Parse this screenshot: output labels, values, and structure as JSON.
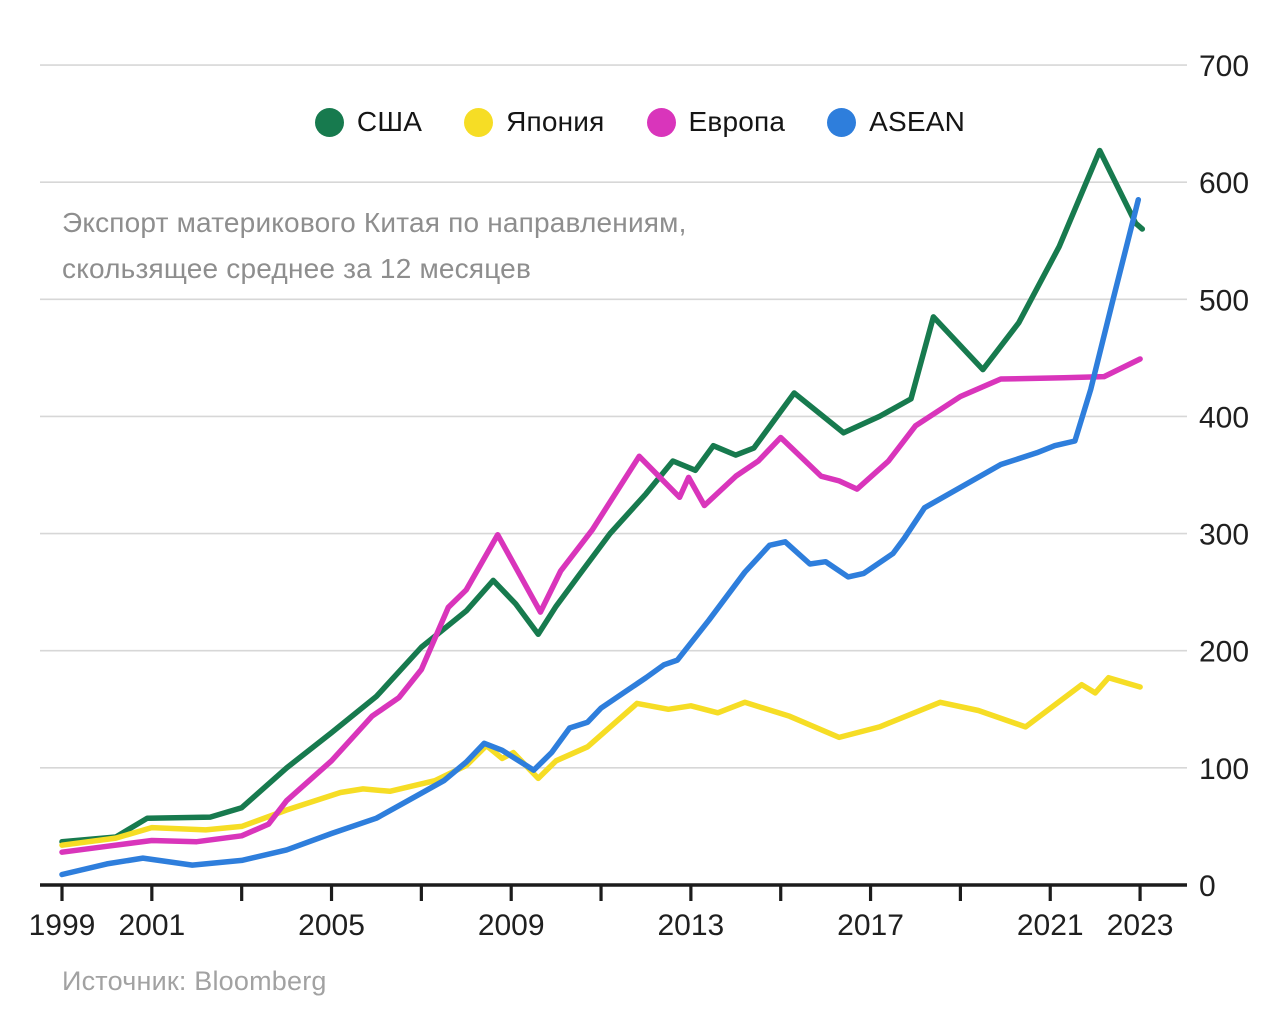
{
  "subtitle": {
    "line1": "Экспорт материкового Китая по направлениям,",
    "line2": "скользящее среднее за 12 месяцев"
  },
  "source": "Источник: Bloomberg",
  "colors": {
    "background": "#ffffff",
    "grid": "#d7d7d7",
    "axis": "#1c1c1c",
    "tick_label": "#1f1f1f",
    "subtitle_gray": "#8e8e8e",
    "source_gray": "#a2a2a2"
  },
  "chart_data": {
    "type": "line",
    "title": "Экспорт материкового Китая по направлениям, скользящее среднее за 12 месяцев",
    "source": "Источник: Bloomberg",
    "legend_position": "top-center",
    "grid": "horizontal",
    "x_axis": {
      "range_years": [
        1999,
        2024.1
      ],
      "tick_years": [
        1999,
        2001,
        2003,
        2005,
        2007,
        2009,
        2011,
        2013,
        2015,
        2017,
        2019,
        2021,
        2023
      ],
      "labeled_tick_years": [
        1999,
        2001,
        2005,
        2009,
        2013,
        2017,
        2021,
        2023
      ]
    },
    "y_axis": {
      "side": "right",
      "range": [
        0,
        700
      ],
      "tick_step": 100,
      "ticks": [
        0,
        100,
        200,
        300,
        400,
        500,
        600,
        700
      ]
    },
    "series": [
      {
        "key": "usa",
        "name": "США",
        "color": "#177A4E",
        "points": [
          [
            1999,
            37
          ],
          [
            2000.2,
            41
          ],
          [
            2000.9,
            57
          ],
          [
            2002.3,
            58
          ],
          [
            2003,
            66
          ],
          [
            2004,
            100
          ],
          [
            2005,
            130
          ],
          [
            2006,
            161
          ],
          [
            2007,
            203
          ],
          [
            2008,
            234
          ],
          [
            2008.6,
            260
          ],
          [
            2009.1,
            240
          ],
          [
            2009.6,
            214
          ],
          [
            2010,
            238
          ],
          [
            2010.5,
            264
          ],
          [
            2011.2,
            300
          ],
          [
            2012,
            334
          ],
          [
            2012.6,
            362
          ],
          [
            2013.1,
            354
          ],
          [
            2013.5,
            375
          ],
          [
            2014,
            367
          ],
          [
            2014.4,
            373
          ],
          [
            2015.3,
            420
          ],
          [
            2016.4,
            386
          ],
          [
            2017.2,
            400
          ],
          [
            2017.9,
            415
          ],
          [
            2018.4,
            485
          ],
          [
            2019.5,
            440
          ],
          [
            2020.3,
            480
          ],
          [
            2021.2,
            545
          ],
          [
            2022.1,
            627
          ],
          [
            2022.9,
            565
          ],
          [
            2023.05,
            560
          ]
        ]
      },
      {
        "key": "japan",
        "name": "Япония",
        "color": "#F6DD25",
        "points": [
          [
            1999,
            34
          ],
          [
            2000.2,
            40
          ],
          [
            2001,
            49
          ],
          [
            2002.2,
            47
          ],
          [
            2003,
            50
          ],
          [
            2004,
            64
          ],
          [
            2005.2,
            79
          ],
          [
            2005.7,
            82
          ],
          [
            2006.3,
            80
          ],
          [
            2007.3,
            89
          ],
          [
            2008,
            102
          ],
          [
            2008.45,
            119
          ],
          [
            2008.8,
            108
          ],
          [
            2009.05,
            113
          ],
          [
            2009.6,
            91
          ],
          [
            2010,
            106
          ],
          [
            2010.7,
            118
          ],
          [
            2011.8,
            155
          ],
          [
            2012.5,
            150
          ],
          [
            2013,
            153
          ],
          [
            2013.6,
            147
          ],
          [
            2014.2,
            156
          ],
          [
            2015.2,
            144
          ],
          [
            2016.3,
            126
          ],
          [
            2017.2,
            135
          ],
          [
            2018.55,
            156
          ],
          [
            2019.4,
            149
          ],
          [
            2020.45,
            135
          ],
          [
            2021.7,
            171
          ],
          [
            2022,
            164
          ],
          [
            2022.3,
            177
          ],
          [
            2023,
            169
          ]
        ]
      },
      {
        "key": "europe",
        "name": "Европа",
        "color": "#D935BB",
        "points": [
          [
            1999,
            28
          ],
          [
            2000,
            33
          ],
          [
            2001,
            38
          ],
          [
            2002,
            37
          ],
          [
            2003,
            42
          ],
          [
            2003.6,
            52
          ],
          [
            2004,
            72
          ],
          [
            2005,
            106
          ],
          [
            2005.9,
            144
          ],
          [
            2006.5,
            160
          ],
          [
            2007,
            184
          ],
          [
            2007.6,
            237
          ],
          [
            2008,
            252
          ],
          [
            2008.7,
            299
          ],
          [
            2009.65,
            233
          ],
          [
            2010.1,
            268
          ],
          [
            2010.8,
            303
          ],
          [
            2011.85,
            366
          ],
          [
            2012.75,
            331
          ],
          [
            2012.95,
            348
          ],
          [
            2013.3,
            324
          ],
          [
            2014,
            349
          ],
          [
            2014.5,
            362
          ],
          [
            2015,
            382
          ],
          [
            2015.9,
            349
          ],
          [
            2016.3,
            345
          ],
          [
            2016.7,
            338
          ],
          [
            2017.4,
            362
          ],
          [
            2018,
            392
          ],
          [
            2019,
            417
          ],
          [
            2019.9,
            432
          ],
          [
            2021.3,
            433
          ],
          [
            2022.2,
            434
          ],
          [
            2023,
            449
          ]
        ]
      },
      {
        "key": "asean",
        "name": "ASEAN",
        "color": "#2E7EDC",
        "points": [
          [
            1999,
            9
          ],
          [
            2000,
            18
          ],
          [
            2000.8,
            23
          ],
          [
            2001.9,
            17
          ],
          [
            2003,
            21
          ],
          [
            2004,
            30
          ],
          [
            2005,
            44
          ],
          [
            2006,
            57
          ],
          [
            2006.7,
            72
          ],
          [
            2007.5,
            89
          ],
          [
            2008,
            105
          ],
          [
            2008.4,
            121
          ],
          [
            2008.8,
            115
          ],
          [
            2009.5,
            98
          ],
          [
            2009.9,
            113
          ],
          [
            2010.3,
            134
          ],
          [
            2010.7,
            139
          ],
          [
            2011,
            151
          ],
          [
            2011.5,
            164
          ],
          [
            2012,
            177
          ],
          [
            2012.4,
            188
          ],
          [
            2012.7,
            192
          ],
          [
            2013.4,
            226
          ],
          [
            2014.2,
            267
          ],
          [
            2014.75,
            290
          ],
          [
            2015.1,
            293
          ],
          [
            2015.65,
            274
          ],
          [
            2016,
            276
          ],
          [
            2016.5,
            263
          ],
          [
            2016.85,
            266
          ],
          [
            2017.5,
            283
          ],
          [
            2017.75,
            296
          ],
          [
            2018.2,
            322
          ],
          [
            2019.9,
            359
          ],
          [
            2020.7,
            369
          ],
          [
            2021.1,
            375
          ],
          [
            2021.55,
            379
          ],
          [
            2021.9,
            423
          ],
          [
            2022.4,
            500
          ],
          [
            2022.96,
            585
          ]
        ]
      }
    ]
  }
}
